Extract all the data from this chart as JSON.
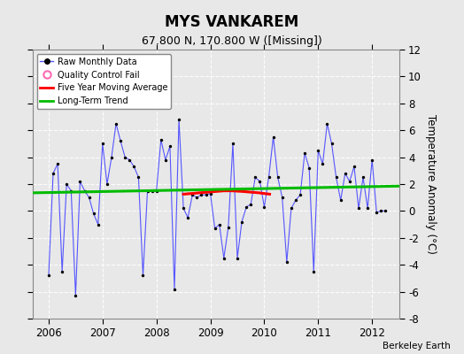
{
  "title": "MYS VANKAREM",
  "subtitle": "67.800 N, 170.800 W ([Missing])",
  "ylabel": "Temperature Anomaly (°C)",
  "credit": "Berkeley Earth",
  "ylim": [
    -8,
    12
  ],
  "xlim": [
    2005.7,
    2012.5
  ],
  "yticks": [
    -8,
    -6,
    -4,
    -2,
    0,
    2,
    4,
    6,
    8,
    10,
    12
  ],
  "xticks": [
    2006,
    2007,
    2008,
    2009,
    2010,
    2011,
    2012
  ],
  "background_color": "#e8e8e8",
  "grid_color": "#d0d0d0",
  "raw_line_color": "#5555ff",
  "raw_dot_color": "#000000",
  "moving_avg_color": "#ff0000",
  "trend_color": "#00bb00",
  "qc_fail_color": "#ff69b4",
  "raw_data": {
    "dates": [
      2006.0,
      2006.083,
      2006.167,
      2006.25,
      2006.333,
      2006.417,
      2006.5,
      2006.583,
      2006.667,
      2006.75,
      2006.833,
      2006.917,
      2007.0,
      2007.083,
      2007.167,
      2007.25,
      2007.333,
      2007.417,
      2007.5,
      2007.583,
      2007.667,
      2007.75,
      2007.833,
      2007.917,
      2008.0,
      2008.083,
      2008.167,
      2008.25,
      2008.333,
      2008.417,
      2008.5,
      2008.583,
      2008.667,
      2008.75,
      2008.833,
      2008.917,
      2009.0,
      2009.083,
      2009.167,
      2009.25,
      2009.333,
      2009.417,
      2009.5,
      2009.583,
      2009.667,
      2009.75,
      2009.833,
      2009.917,
      2010.0,
      2010.083,
      2010.167,
      2010.25,
      2010.333,
      2010.417,
      2010.5,
      2010.583,
      2010.667,
      2010.75,
      2010.833,
      2010.917,
      2011.0,
      2011.083,
      2011.167,
      2011.25,
      2011.333,
      2011.417,
      2011.5,
      2011.583,
      2011.667,
      2011.75,
      2011.833,
      2011.917,
      2012.0,
      2012.083,
      2012.167,
      2012.25
    ],
    "values": [
      -4.8,
      2.8,
      3.5,
      -4.5,
      2.0,
      1.5,
      -6.3,
      2.2,
      1.5,
      1.0,
      -0.2,
      -1.0,
      5.0,
      2.0,
      4.0,
      6.5,
      5.2,
      4.0,
      3.8,
      3.3,
      2.5,
      -4.8,
      1.5,
      1.5,
      1.5,
      5.3,
      3.8,
      4.8,
      -5.8,
      6.8,
      0.2,
      -0.5,
      1.2,
      1.0,
      1.2,
      1.2,
      1.3,
      -1.3,
      -1.0,
      -3.5,
      -1.2,
      5.0,
      -3.5,
      -0.8,
      0.3,
      0.5,
      2.5,
      2.2,
      0.3,
      2.5,
      5.5,
      2.5,
      1.0,
      -3.8,
      0.2,
      0.8,
      1.2,
      4.3,
      3.2,
      -4.5,
      4.5,
      3.5,
      6.5,
      5.0,
      2.5,
      0.8,
      2.8,
      2.2,
      3.3,
      0.2,
      2.5,
      0.2,
      3.8,
      -0.1,
      0.0,
      0.0
    ]
  },
  "moving_avg": {
    "dates": [
      2008.5,
      2008.65,
      2008.8,
      2008.95,
      2009.1,
      2009.25,
      2009.4,
      2009.6,
      2009.75,
      2009.9,
      2010.0,
      2010.1
    ],
    "values": [
      1.25,
      1.3,
      1.35,
      1.4,
      1.45,
      1.5,
      1.5,
      1.45,
      1.4,
      1.35,
      1.3,
      1.25
    ]
  },
  "trend": {
    "dates": [
      2005.7,
      2012.5
    ],
    "values": [
      1.35,
      1.85
    ]
  }
}
